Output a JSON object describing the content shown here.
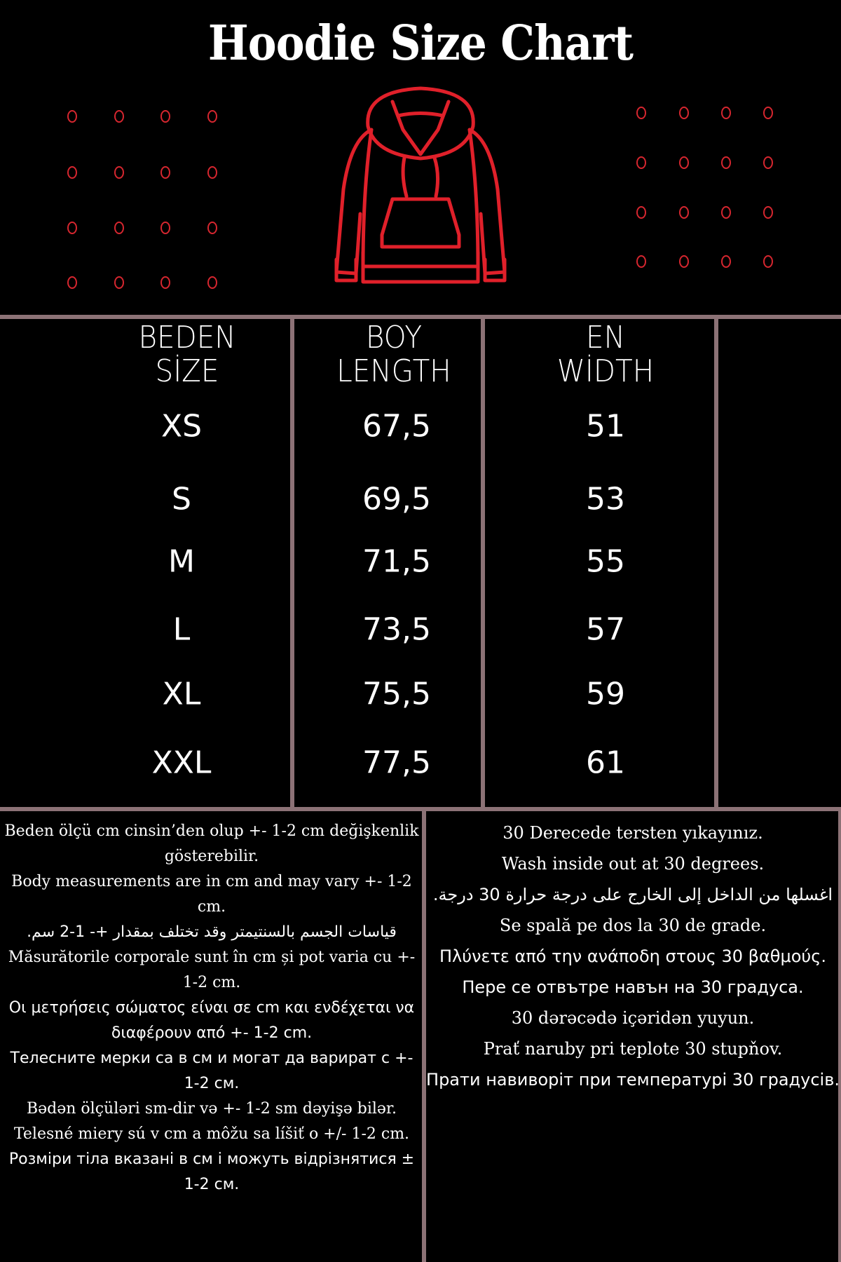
{
  "title": "Hoodie Size Chart",
  "colors": {
    "background": "#000000",
    "accent": "#d6262f",
    "divider": "#8c7276",
    "text": "#ffffff"
  },
  "illustration": "hoodie-outline-icon",
  "table": {
    "headers": [
      {
        "line1": "BEDEN",
        "line2": "SİZE"
      },
      {
        "line1": "BOY",
        "line2": "LENGTH"
      },
      {
        "line1": "EN",
        "line2": "WİDTH"
      }
    ],
    "rows": [
      {
        "size": "XS",
        "length": "67,5",
        "width": "51"
      },
      {
        "size": "S",
        "length": "69,5",
        "width": "53"
      },
      {
        "size": "M",
        "length": "71,5",
        "width": "55"
      },
      {
        "size": "L",
        "length": "73,5",
        "width": "57"
      },
      {
        "size": "XL",
        "length": "75,5",
        "width": "59"
      },
      {
        "size": "XXL",
        "length": "77,5",
        "width": "61"
      }
    ]
  },
  "notes_left": [
    "Beden ölçü cm cinsin’den olup +- 1-2 cm değişkenlik gösterebilir.",
    "Body measurements are in cm and may vary +- 1-2 cm.",
    "قياسات الجسم بالسنتيمتر وقد تختلف بمقدار +- 1-2 سم.",
    "Măsurătorile corporale sunt în cm și pot varia cu +- 1-2 cm.",
    "Οι μετρήσεις σώματος είναι σε cm και ενδέχεται να διαφέρουν από +- 1-2 cm.",
    "Телесните мерки са в см и могат да варират с +- 1-2 см.",
    "Bədən ölçüləri sm-dir və +- 1-2 sm dəyişə bilər.",
    "Telesné miery sú v cm a môžu sa líšiť o +/- 1-2 cm.",
    "Розміри тіла вказані в см і можуть відрізнятися ± 1-2 см."
  ],
  "notes_right": [
    "30 Derecede tersten yıkayınız.",
    "Wash inside out at 30 degrees.",
    "اغسلها من الداخل إلى الخارج على درجة حرارة 30 درجة.",
    "Se spală pe dos la 30 de grade.",
    "Πλύνετε από την ανάποδη στους 30 βαθμούς.",
    "Пере се отвътре навън на 30 градуса.",
    "30 dərəcədə içəridən yuyun.",
    "Prať naruby pri teplote 30 stupňov.",
    "Прати навиворіт при температурі 30 градусів."
  ]
}
